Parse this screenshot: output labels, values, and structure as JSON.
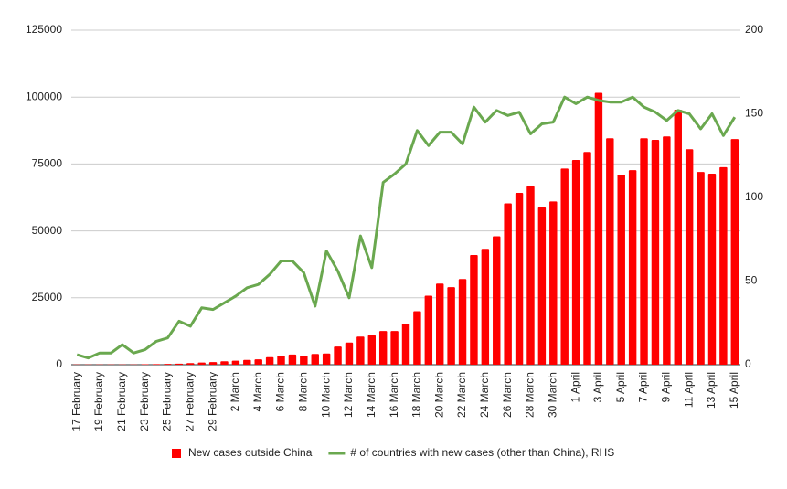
{
  "chart_data": {
    "type": "combo",
    "categories": [
      "17 February",
      null,
      "19 February",
      null,
      "21 February",
      null,
      "23 February",
      null,
      "25 February",
      null,
      "27 February",
      null,
      "29 February",
      null,
      "2 March",
      null,
      "4 March",
      null,
      "6 March",
      null,
      "8 March",
      null,
      "10 March",
      null,
      "12 March",
      null,
      "14 March",
      null,
      "16 March",
      null,
      "18 March",
      null,
      "20 March",
      null,
      "22 March",
      null,
      "24 March",
      null,
      "26 March",
      null,
      "28 March",
      null,
      "30 March",
      null,
      "1 April",
      null,
      "3 April",
      null,
      "5 April",
      null,
      "7 April",
      null,
      "9 April",
      null,
      "11 April",
      null,
      "13 April",
      null,
      "15 April"
    ],
    "series": [
      {
        "name": "New cases outside China",
        "type": "bar",
        "color": "#ff0000",
        "values": [
          100,
          100,
          100,
          100,
          100,
          100,
          150,
          200,
          300,
          400,
          600,
          800,
          1000,
          1300,
          1500,
          1800,
          2000,
          2800,
          3400,
          3800,
          3400,
          4000,
          4200,
          6800,
          8300,
          10500,
          11000,
          12600,
          12600,
          15300,
          20000,
          25800,
          30300,
          29000,
          32000,
          41000,
          43300,
          48000,
          60300,
          64200,
          66700,
          58800,
          61000,
          73300,
          76500,
          79500,
          101600,
          84600,
          71000,
          72700,
          84600,
          84000,
          85300,
          95300,
          80500,
          72000,
          71400,
          73800,
          84300
        ]
      },
      {
        "name": "# of countries with new cases (other than China), RHS",
        "type": "line",
        "axis": "y2",
        "color": "#6aa84f",
        "values": [
          6,
          4,
          7,
          7,
          12,
          7,
          9,
          14,
          16,
          26,
          23,
          34,
          33,
          37,
          41,
          46,
          48,
          54,
          62,
          62,
          55,
          35,
          68,
          56,
          40,
          77,
          58,
          109,
          114,
          120,
          140,
          131,
          139,
          139,
          132,
          154,
          145,
          152,
          149,
          151,
          138,
          144,
          145,
          160,
          156,
          160,
          158,
          157,
          157,
          160,
          154,
          151,
          146,
          152,
          150,
          141,
          150,
          137,
          148
        ]
      }
    ],
    "ylim": [
      0,
      125000
    ],
    "yticks": [
      0,
      25000,
      50000,
      75000,
      100000,
      125000
    ],
    "y2lim": [
      0,
      200
    ],
    "y2ticks": [
      0,
      50,
      100,
      150,
      200
    ],
    "grid": true,
    "legend": "bottom"
  }
}
